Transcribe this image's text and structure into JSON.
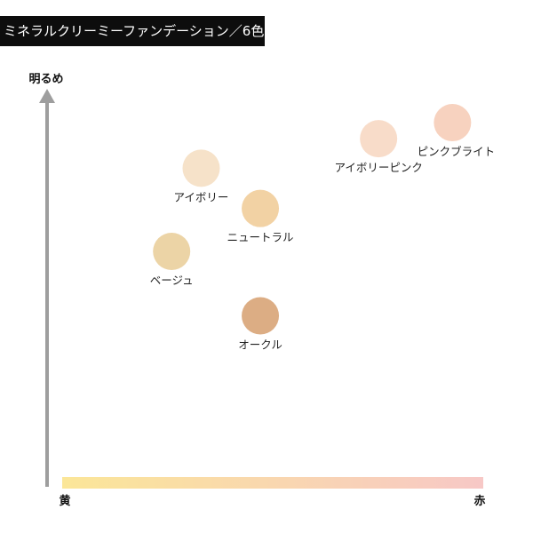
{
  "title": "ミネラルクリーミーファンデーション／6色",
  "colors": {
    "axis_arrow": "#9e9e9e",
    "gradient_start": "#fbe698",
    "gradient_end": "#f7c8c6"
  },
  "chart_data": {
    "type": "scatter",
    "title": "ミネラルクリーミーファンデーション／6色",
    "ylabel": "明るめ",
    "x_axis": {
      "start_label": "黄",
      "end_label": "赤"
    },
    "xlim": [
      0,
      100
    ],
    "ylim": [
      0,
      100
    ],
    "grid": false,
    "points": [
      {
        "name": "アイボリー",
        "x": 28,
        "y": 81,
        "color": "#f6e2c9"
      },
      {
        "name": "ニュートラル",
        "x": 44,
        "y": 66,
        "color": "#f2d2a4"
      },
      {
        "name": "ベージュ",
        "x": 20,
        "y": 50,
        "color": "#ecd4a6"
      },
      {
        "name": "オークル",
        "x": 44,
        "y": 26,
        "color": "#dcad84"
      },
      {
        "name": "アイボリーピンク",
        "x": 76,
        "y": 92,
        "color": "#f8dcc9"
      },
      {
        "name": "ピンクブライト",
        "x": 96,
        "y": 98,
        "color": "#f7d2bf"
      }
    ]
  }
}
